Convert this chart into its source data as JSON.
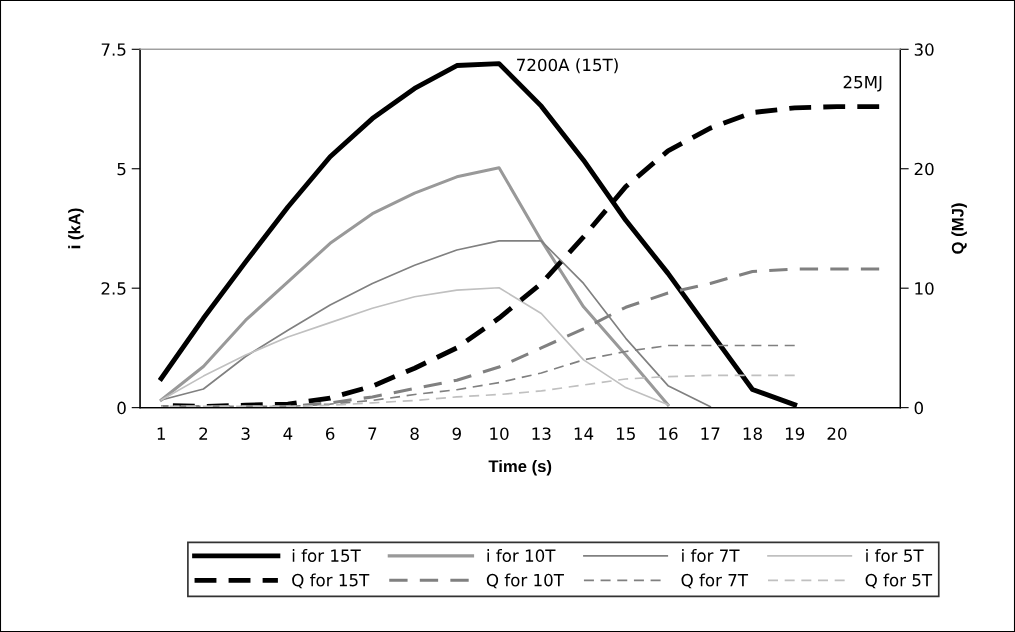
{
  "chart_data": {
    "type": "line",
    "xlabel": "Time (s)",
    "ylabel": "i (kA)",
    "y2label": "Q (MJ)",
    "categories": [
      "1",
      "2",
      "3",
      "4",
      "6",
      "7",
      "8",
      "9",
      "10",
      "13",
      "14",
      "15",
      "16",
      "17",
      "18",
      "19",
      "20",
      null
    ],
    "ylim": [
      0,
      7.5
    ],
    "yticks": [
      0,
      2.5,
      5,
      7.5
    ],
    "y2lim": [
      0,
      30
    ],
    "y2ticks": [
      0,
      10,
      20,
      30
    ],
    "grid": false,
    "legend": "bottom",
    "marker": "none",
    "series": [
      {
        "name": "i for 15T",
        "color": "#000000",
        "line_style": "solid",
        "values": [
          0.61,
          1.87,
          3.05,
          4.2,
          5.25,
          6.05,
          6.68,
          7.16,
          7.2,
          6.31,
          5.18,
          3.92,
          2.81,
          1.59,
          0.38,
          0.06,
          null,
          null
        ]
      },
      {
        "name": "i for 10T",
        "color": "#999999",
        "line_style": "solid",
        "values": [
          0.16,
          0.86,
          1.83,
          2.63,
          3.44,
          4.06,
          4.49,
          4.83,
          5.02,
          3.5,
          2.11,
          1.1,
          0.06,
          null,
          null,
          null,
          null,
          null
        ]
      },
      {
        "name": "i for 7T",
        "color": "#808080",
        "line_style": "solid",
        "values": [
          0.16,
          0.39,
          1.07,
          1.62,
          2.15,
          2.6,
          2.98,
          3.3,
          3.49,
          3.49,
          2.6,
          1.45,
          0.46,
          0.02,
          null,
          null,
          null,
          null
        ]
      },
      {
        "name": "i for 5T",
        "color": "#c0c0c0",
        "line_style": "solid",
        "values": [
          0.16,
          0.66,
          1.1,
          1.48,
          1.78,
          2.08,
          2.32,
          2.46,
          2.51,
          1.97,
          1.0,
          0.42,
          0.06,
          null,
          null,
          null,
          null,
          null
        ]
      },
      {
        "name": "Q for 15T",
        "color": "#000000",
        "line_style": "dashed",
        "axis": "y2",
        "values": [
          0.2,
          0.1,
          0.2,
          0.3,
          0.8,
          1.8,
          3.3,
          5.0,
          7.5,
          10.4,
          14.3,
          18.5,
          21.5,
          23.4,
          24.7,
          25.1,
          25.2,
          25.2
        ]
      },
      {
        "name": "Q for 10T",
        "color": "#808080",
        "line_style": "dashed",
        "axis": "y2",
        "values": [
          0.1,
          0.1,
          0.1,
          0.1,
          0.4,
          0.9,
          1.6,
          2.3,
          3.4,
          5.0,
          6.6,
          8.4,
          9.6,
          10.4,
          11.4,
          11.6,
          11.6,
          11.6
        ]
      },
      {
        "name": "Q for 7T",
        "color": "#808080",
        "line_style": "dashed",
        "axis": "y2",
        "values": [
          0.1,
          0.1,
          0.1,
          0.1,
          0.3,
          0.6,
          1.1,
          1.5,
          2.1,
          2.9,
          4.0,
          4.7,
          5.2,
          5.2,
          5.2,
          5.2,
          null,
          null
        ]
      },
      {
        "name": "Q for 5T",
        "color": "#c0c0c0",
        "line_style": "dashed",
        "axis": "y2",
        "values": [
          0.1,
          0.1,
          0.1,
          0.1,
          0.2,
          0.4,
          0.6,
          0.9,
          1.1,
          1.4,
          1.9,
          2.4,
          2.6,
          2.7,
          2.7,
          2.7,
          null,
          null
        ]
      }
    ],
    "annotations": [
      {
        "text": "7200A (15T)",
        "x": "10",
        "y": 7.2
      },
      "25MJ"
    ]
  }
}
